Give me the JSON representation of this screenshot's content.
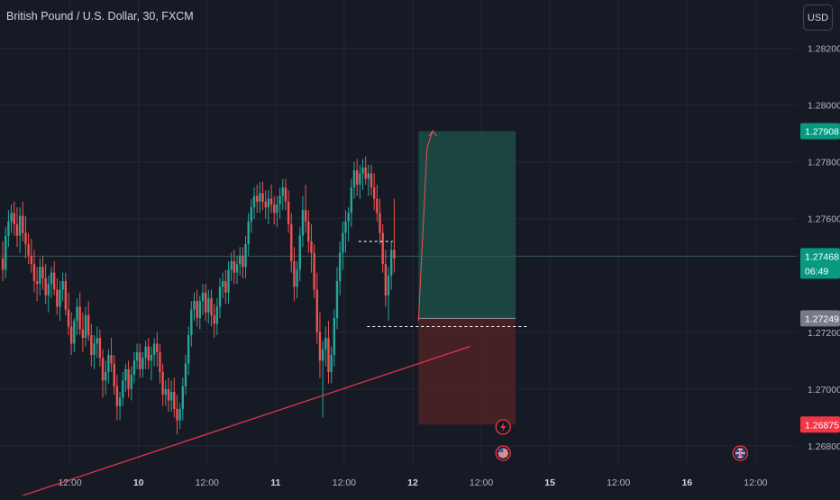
{
  "symbol_title": "British Pound / U.S. Dollar, 30, FXCM",
  "currency_button": "USD",
  "colors": {
    "background": "#161a25",
    "grid": "#232734",
    "up": "#26a69a",
    "down": "#ef5350",
    "text": "#b2b5be",
    "trendline": "#f23645",
    "profit_zone": "#1c4d47",
    "loss_zone": "#4a2227",
    "price_line": "#36564f"
  },
  "chart_data": {
    "type": "candlestick",
    "y_range": [
      1.2673,
      1.2837
    ],
    "y_ticks": [
      {
        "value": 1.282,
        "label": "1.28200"
      },
      {
        "value": 1.28,
        "label": "1.28000"
      },
      {
        "value": 1.278,
        "label": "1.27800"
      },
      {
        "value": 1.276,
        "label": "1.27600"
      },
      {
        "value": 1.272,
        "label": "1.27200"
      },
      {
        "value": 1.27,
        "label": "1.27000"
      },
      {
        "value": 1.268,
        "label": "1.26800"
      }
    ],
    "x_ticks": [
      {
        "index": 24,
        "label": "12:00",
        "bold": false
      },
      {
        "index": 48,
        "label": "10",
        "bold": true
      },
      {
        "index": 72,
        "label": "12:00",
        "bold": false
      },
      {
        "index": 96,
        "label": "11",
        "bold": true
      },
      {
        "index": 120,
        "label": "12:00",
        "bold": false
      },
      {
        "index": 144,
        "label": "12",
        "bold": true
      },
      {
        "index": 168,
        "label": "12:00",
        "bold": false
      },
      {
        "index": 192,
        "label": "15",
        "bold": true
      },
      {
        "index": 216,
        "label": "12:00",
        "bold": false
      },
      {
        "index": 240,
        "label": "16",
        "bold": true
      },
      {
        "index": 264,
        "label": "12:00",
        "bold": false
      }
    ],
    "price_badges": [
      {
        "value": 1.27908,
        "label": "1.27908",
        "sub": "",
        "color": "#089981"
      },
      {
        "value": 1.27468,
        "label": "1.27468",
        "sub": "06:49",
        "color": "#089981"
      },
      {
        "value": 1.27249,
        "label": "1.27249",
        "sub": "",
        "color": "#787b86"
      },
      {
        "value": 1.26875,
        "label": "1.26875",
        "sub": "",
        "color": "#f23645"
      }
    ],
    "current_price": 1.27468,
    "trendline": {
      "start": [
        0,
        1.266
      ],
      "end": [
        164,
        1.2715
      ]
    },
    "position": {
      "type": "long",
      "start_index": 146,
      "end_index": 180,
      "entry": 1.27249,
      "target": 1.27908,
      "stop": 1.26875
    },
    "dashed_levels": [
      {
        "value": 1.2752,
        "from_index": 125,
        "to_index": 137
      },
      {
        "value": 1.2722,
        "from_index": 128,
        "to_index": 184
      }
    ],
    "projection_path": [
      [
        146,
        1.2724
      ],
      [
        149,
        1.2785
      ],
      [
        151,
        1.2791
      ]
    ],
    "event_icons": [
      {
        "index": 175,
        "kind": "lightning",
        "row": 1
      },
      {
        "index": 175,
        "kind": "us-flag",
        "row": 2
      },
      {
        "index": 258,
        "kind": "uk-flag",
        "row": 2
      }
    ],
    "candles_ohlc": [
      [
        1.2746,
        1.2752,
        1.2738,
        1.2742
      ],
      [
        1.2742,
        1.2757,
        1.2739,
        1.2754
      ],
      [
        1.2754,
        1.2763,
        1.275,
        1.2759
      ],
      [
        1.2759,
        1.2765,
        1.2755,
        1.2762
      ],
      [
        1.2762,
        1.2766,
        1.2754,
        1.2758
      ],
      [
        1.2758,
        1.2764,
        1.275,
        1.2754
      ],
      [
        1.2754,
        1.2764,
        1.2748,
        1.2761
      ],
      [
        1.2761,
        1.2766,
        1.2752,
        1.2755
      ],
      [
        1.2755,
        1.2761,
        1.2746,
        1.2751
      ],
      [
        1.2751,
        1.2755,
        1.2744,
        1.2747
      ],
      [
        1.2747,
        1.2753,
        1.2741,
        1.2744
      ],
      [
        1.2744,
        1.2749,
        1.2734,
        1.2738
      ],
      [
        1.2738,
        1.2743,
        1.2731,
        1.2737
      ],
      [
        1.2737,
        1.2746,
        1.2733,
        1.2743
      ],
      [
        1.2743,
        1.2747,
        1.2735,
        1.2739
      ],
      [
        1.2739,
        1.2744,
        1.273,
        1.2733
      ],
      [
        1.2733,
        1.274,
        1.2727,
        1.2737
      ],
      [
        1.2737,
        1.2743,
        1.2732,
        1.2741
      ],
      [
        1.2741,
        1.2745,
        1.2733,
        1.2735
      ],
      [
        1.2735,
        1.2739,
        1.2726,
        1.2729
      ],
      [
        1.2729,
        1.2738,
        1.2724,
        1.2735
      ],
      [
        1.2735,
        1.2741,
        1.2731,
        1.2738
      ],
      [
        1.2738,
        1.2741,
        1.2726,
        1.2728
      ],
      [
        1.2728,
        1.2734,
        1.2719,
        1.2722
      ],
      [
        1.2722,
        1.2727,
        1.2712,
        1.2716
      ],
      [
        1.2716,
        1.2725,
        1.2713,
        1.2724
      ],
      [
        1.2724,
        1.2732,
        1.2719,
        1.2729
      ],
      [
        1.2729,
        1.2734,
        1.2719,
        1.2721
      ],
      [
        1.2721,
        1.2727,
        1.2713,
        1.2718
      ],
      [
        1.2718,
        1.2729,
        1.2715,
        1.2726
      ],
      [
        1.2726,
        1.2731,
        1.2717,
        1.2719
      ],
      [
        1.2719,
        1.2723,
        1.2708,
        1.2712
      ],
      [
        1.2712,
        1.2719,
        1.2707,
        1.2716
      ],
      [
        1.2716,
        1.2722,
        1.2711,
        1.2718
      ],
      [
        1.2718,
        1.2721,
        1.2708,
        1.2711
      ],
      [
        1.2711,
        1.2714,
        1.2697,
        1.2703
      ],
      [
        1.2703,
        1.271,
        1.2698,
        1.2706
      ],
      [
        1.2706,
        1.2714,
        1.2702,
        1.2712
      ],
      [
        1.2712,
        1.2718,
        1.2706,
        1.2709
      ],
      [
        1.2709,
        1.2712,
        1.2698,
        1.2701
      ],
      [
        1.2701,
        1.2705,
        1.2689,
        1.2694
      ],
      [
        1.2694,
        1.2699,
        1.2689,
        1.2697
      ],
      [
        1.2697,
        1.2706,
        1.2694,
        1.2703
      ],
      [
        1.2703,
        1.2709,
        1.2699,
        1.2707
      ],
      [
        1.2707,
        1.271,
        1.2697,
        1.27
      ],
      [
        1.27,
        1.2708,
        1.2696,
        1.2705
      ],
      [
        1.2705,
        1.2713,
        1.2702,
        1.271
      ],
      [
        1.271,
        1.2716,
        1.2707,
        1.2713
      ],
      [
        1.2713,
        1.2716,
        1.2704,
        1.2707
      ],
      [
        1.2707,
        1.2713,
        1.2704,
        1.2711
      ],
      [
        1.2711,
        1.2717,
        1.2707,
        1.2715
      ],
      [
        1.2715,
        1.2718,
        1.2707,
        1.271
      ],
      [
        1.271,
        1.2715,
        1.2703,
        1.2712
      ],
      [
        1.2712,
        1.2718,
        1.2708,
        1.2716
      ],
      [
        1.2716,
        1.272,
        1.2708,
        1.2713
      ],
      [
        1.2713,
        1.2716,
        1.2702,
        1.2706
      ],
      [
        1.2706,
        1.2709,
        1.2694,
        1.2698
      ],
      [
        1.2698,
        1.2703,
        1.2694,
        1.27
      ],
      [
        1.27,
        1.2704,
        1.2692,
        1.2696
      ],
      [
        1.2696,
        1.2703,
        1.2692,
        1.2699
      ],
      [
        1.2699,
        1.2704,
        1.269,
        1.2693
      ],
      [
        1.2693,
        1.2698,
        1.2684,
        1.2689
      ],
      [
        1.2689,
        1.2695,
        1.2686,
        1.2693
      ],
      [
        1.2693,
        1.2704,
        1.2689,
        1.2701
      ],
      [
        1.2701,
        1.2712,
        1.2698,
        1.2709
      ],
      [
        1.2709,
        1.2722,
        1.2705,
        1.2719
      ],
      [
        1.2719,
        1.2731,
        1.2715,
        1.2728
      ],
      [
        1.2728,
        1.2734,
        1.2724,
        1.2731
      ],
      [
        1.2731,
        1.2735,
        1.2722,
        1.2725
      ],
      [
        1.2725,
        1.2733,
        1.2721,
        1.2731
      ],
      [
        1.2731,
        1.2737,
        1.2726,
        1.2734
      ],
      [
        1.2734,
        1.2737,
        1.2724,
        1.2727
      ],
      [
        1.2727,
        1.2735,
        1.2723,
        1.2732
      ],
      [
        1.2732,
        1.2735,
        1.2722,
        1.2726
      ],
      [
        1.2726,
        1.273,
        1.2718,
        1.2723
      ],
      [
        1.2723,
        1.2732,
        1.2719,
        1.2729
      ],
      [
        1.2729,
        1.2739,
        1.2725,
        1.2736
      ],
      [
        1.2736,
        1.2741,
        1.2732,
        1.2738
      ],
      [
        1.2738,
        1.2742,
        1.273,
        1.2734
      ],
      [
        1.2734,
        1.2745,
        1.273,
        1.2742
      ],
      [
        1.2742,
        1.2748,
        1.2738,
        1.2745
      ],
      [
        1.2745,
        1.2749,
        1.2737,
        1.2741
      ],
      [
        1.2741,
        1.2747,
        1.2737,
        1.2744
      ],
      [
        1.2744,
        1.275,
        1.274,
        1.2747
      ],
      [
        1.2747,
        1.275,
        1.2739,
        1.2743
      ],
      [
        1.2743,
        1.2754,
        1.2739,
        1.2751
      ],
      [
        1.2751,
        1.2762,
        1.2747,
        1.2759
      ],
      [
        1.2759,
        1.2767,
        1.2755,
        1.2764
      ],
      [
        1.2764,
        1.2771,
        1.276,
        1.2768
      ],
      [
        1.2768,
        1.2772,
        1.2762,
        1.2766
      ],
      [
        1.2766,
        1.2773,
        1.2762,
        1.2769
      ],
      [
        1.2769,
        1.2773,
        1.2763,
        1.2766
      ],
      [
        1.2766,
        1.277,
        1.276,
        1.2764
      ],
      [
        1.2764,
        1.277,
        1.2758,
        1.2767
      ],
      [
        1.2767,
        1.2772,
        1.2762,
        1.2765
      ],
      [
        1.2765,
        1.2768,
        1.2758,
        1.2762
      ],
      [
        1.2762,
        1.2768,
        1.2757,
        1.2765
      ],
      [
        1.2765,
        1.2771,
        1.276,
        1.2768
      ],
      [
        1.2768,
        1.2774,
        1.2763,
        1.2771
      ],
      [
        1.2771,
        1.2774,
        1.2763,
        1.2766
      ],
      [
        1.2766,
        1.277,
        1.2755,
        1.2758
      ],
      [
        1.2758,
        1.2762,
        1.2741,
        1.2745
      ],
      [
        1.2745,
        1.275,
        1.2731,
        1.2736
      ],
      [
        1.2736,
        1.2745,
        1.2732,
        1.2742
      ],
      [
        1.2742,
        1.2757,
        1.2738,
        1.2754
      ],
      [
        1.2754,
        1.2768,
        1.275,
        1.2763
      ],
      [
        1.2763,
        1.2772,
        1.2755,
        1.2759
      ],
      [
        1.2759,
        1.2763,
        1.2748,
        1.2752
      ],
      [
        1.2752,
        1.2758,
        1.2741,
        1.2748
      ],
      [
        1.2748,
        1.2751,
        1.2732,
        1.2735
      ],
      [
        1.2735,
        1.2741,
        1.2716,
        1.272
      ],
      [
        1.272,
        1.2727,
        1.2704,
        1.271
      ],
      [
        1.271,
        1.2717,
        1.269,
        1.2714
      ],
      [
        1.2714,
        1.2722,
        1.2708,
        1.2718
      ],
      [
        1.2718,
        1.2724,
        1.2702,
        1.2706
      ],
      [
        1.2706,
        1.2715,
        1.2702,
        1.2712
      ],
      [
        1.2712,
        1.2728,
        1.2708,
        1.2725
      ],
      [
        1.2725,
        1.2743,
        1.2721,
        1.2738
      ],
      [
        1.2738,
        1.2752,
        1.2733,
        1.2748
      ],
      [
        1.2748,
        1.2759,
        1.2742,
        1.2755
      ],
      [
        1.2755,
        1.2763,
        1.2748,
        1.2759
      ],
      [
        1.2759,
        1.2764,
        1.2752,
        1.2762
      ],
      [
        1.2762,
        1.2774,
        1.2757,
        1.2771
      ],
      [
        1.2771,
        1.278,
        1.2767,
        1.2777
      ],
      [
        1.2777,
        1.2781,
        1.2768,
        1.2772
      ],
      [
        1.2772,
        1.2779,
        1.2767,
        1.2776
      ],
      [
        1.2776,
        1.2781,
        1.277,
        1.2778
      ],
      [
        1.2778,
        1.2782,
        1.2772,
        1.2774
      ],
      [
        1.2774,
        1.2779,
        1.2768,
        1.2776
      ],
      [
        1.2776,
        1.2779,
        1.2768,
        1.2771
      ],
      [
        1.2771,
        1.2776,
        1.2763,
        1.2767
      ],
      [
        1.2767,
        1.2772,
        1.2759,
        1.2762
      ],
      [
        1.2762,
        1.2767,
        1.2751,
        1.2755
      ],
      [
        1.2755,
        1.2758,
        1.2741,
        1.2744
      ],
      [
        1.2744,
        1.2749,
        1.2729,
        1.2733
      ],
      [
        1.2733,
        1.2743,
        1.2724,
        1.274
      ],
      [
        1.274,
        1.2752,
        1.2735,
        1.2749
      ],
      [
        1.2749,
        1.2767,
        1.2741,
        1.2746
      ]
    ]
  }
}
